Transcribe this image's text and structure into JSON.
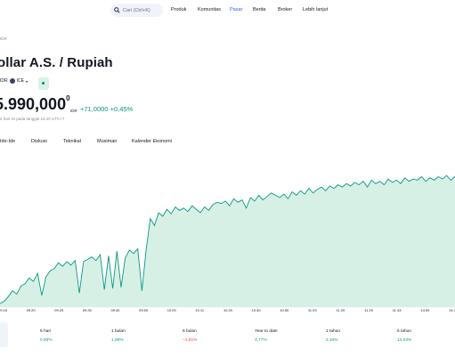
{
  "header": {
    "search_placeholder": "Cari (Ctrl+K)",
    "nav": [
      {
        "label": "Produk",
        "active": false
      },
      {
        "label": "Komunitas",
        "active": false
      },
      {
        "label": "Pasar",
        "active": true
      },
      {
        "label": "Berita",
        "active": false
      },
      {
        "label": "Broker",
        "active": false
      },
      {
        "label": "Lebih lanjut",
        "active": false
      }
    ]
  },
  "symbol": {
    "breadcrumb": "IDR",
    "title": "ollar A.S. / Rupiah",
    "ticker": "IDR",
    "source": "ICE",
    "price_main": "5.990,000",
    "price_sup": "0",
    "currency": "IDR",
    "change": "+71,0000 +0,45%",
    "time_note": "ir hari ini pada tanggal 15:10 UTC+7"
  },
  "tabs": [
    "Ide-Ide",
    "Diskusi",
    "Teknikal",
    "Musiman",
    "Kalender Ekonomi"
  ],
  "colors": {
    "accent": "#2962ff",
    "positive": "#089981",
    "negative": "#f23645",
    "area_fill": "#d7f0e6"
  },
  "chart_data": {
    "type": "area",
    "x_ticks": [
      "09.15",
      "09.20",
      "09.25",
      "09.30",
      "09.40",
      "09.50",
      "10.00",
      "10.11",
      "10.20",
      "10.40",
      "10.50",
      "11.03",
      "11.20",
      "11.25",
      "11.43",
      "14.00",
      "14.30"
    ],
    "values": [
      0.3,
      0.5,
      0.9,
      1.4,
      1.1,
      1.8,
      2.0,
      2.5,
      2.2,
      2.9,
      1.0,
      2.6,
      3.1,
      3.3,
      3.8,
      3.5,
      3.9,
      3.6,
      4.0,
      1.2,
      3.9,
      4.1,
      4.3,
      4.0,
      4.5,
      1.5,
      4.4,
      1.6,
      4.8,
      1.7,
      4.2,
      4.9,
      4.6,
      5.0,
      1.4,
      4.9,
      7.6,
      7.0,
      8.1,
      7.8,
      8.4,
      8.0,
      8.6,
      8.3,
      8.5,
      8.2,
      8.7,
      8.4,
      8.1,
      8.6,
      8.3,
      8.8,
      9.0,
      8.9,
      9.1,
      8.7,
      9.3,
      9.0,
      9.2,
      8.5,
      9.4,
      9.1,
      9.6,
      9.2,
      9.5,
      9.8,
      9.6,
      9.4,
      9.7,
      9.3,
      9.9,
      9.6,
      10.0,
      9.7,
      10.2,
      9.8,
      10.1,
      10.3,
      10.0,
      10.4,
      10.2,
      10.5,
      10.3,
      10.6,
      10.4,
      10.7,
      10.5,
      10.8,
      10.3,
      10.9,
      10.6,
      10.8,
      10.5,
      11.0,
      10.7,
      10.9,
      10.6,
      11.1,
      10.8,
      11.0,
      10.9,
      11.2,
      10.8,
      11.1,
      10.9,
      11.2,
      11.0,
      11.3,
      10.9,
      11.2
    ],
    "ylim": [
      0,
      12
    ]
  },
  "performance": [
    {
      "label": "5 hari",
      "value": "0,93%",
      "sign": "pos"
    },
    {
      "label": "1 bulan",
      "value": "1,59%",
      "sign": "pos"
    },
    {
      "label": "6 bulan",
      "value": "−1,81%",
      "sign": "neg"
    },
    {
      "label": "Year to date",
      "value": "3,77%",
      "sign": "pos"
    },
    {
      "label": "1 tahun",
      "value": "2,34%",
      "sign": "pos"
    },
    {
      "label": "5 tahun",
      "value": "14,04%",
      "sign": "pos"
    }
  ]
}
